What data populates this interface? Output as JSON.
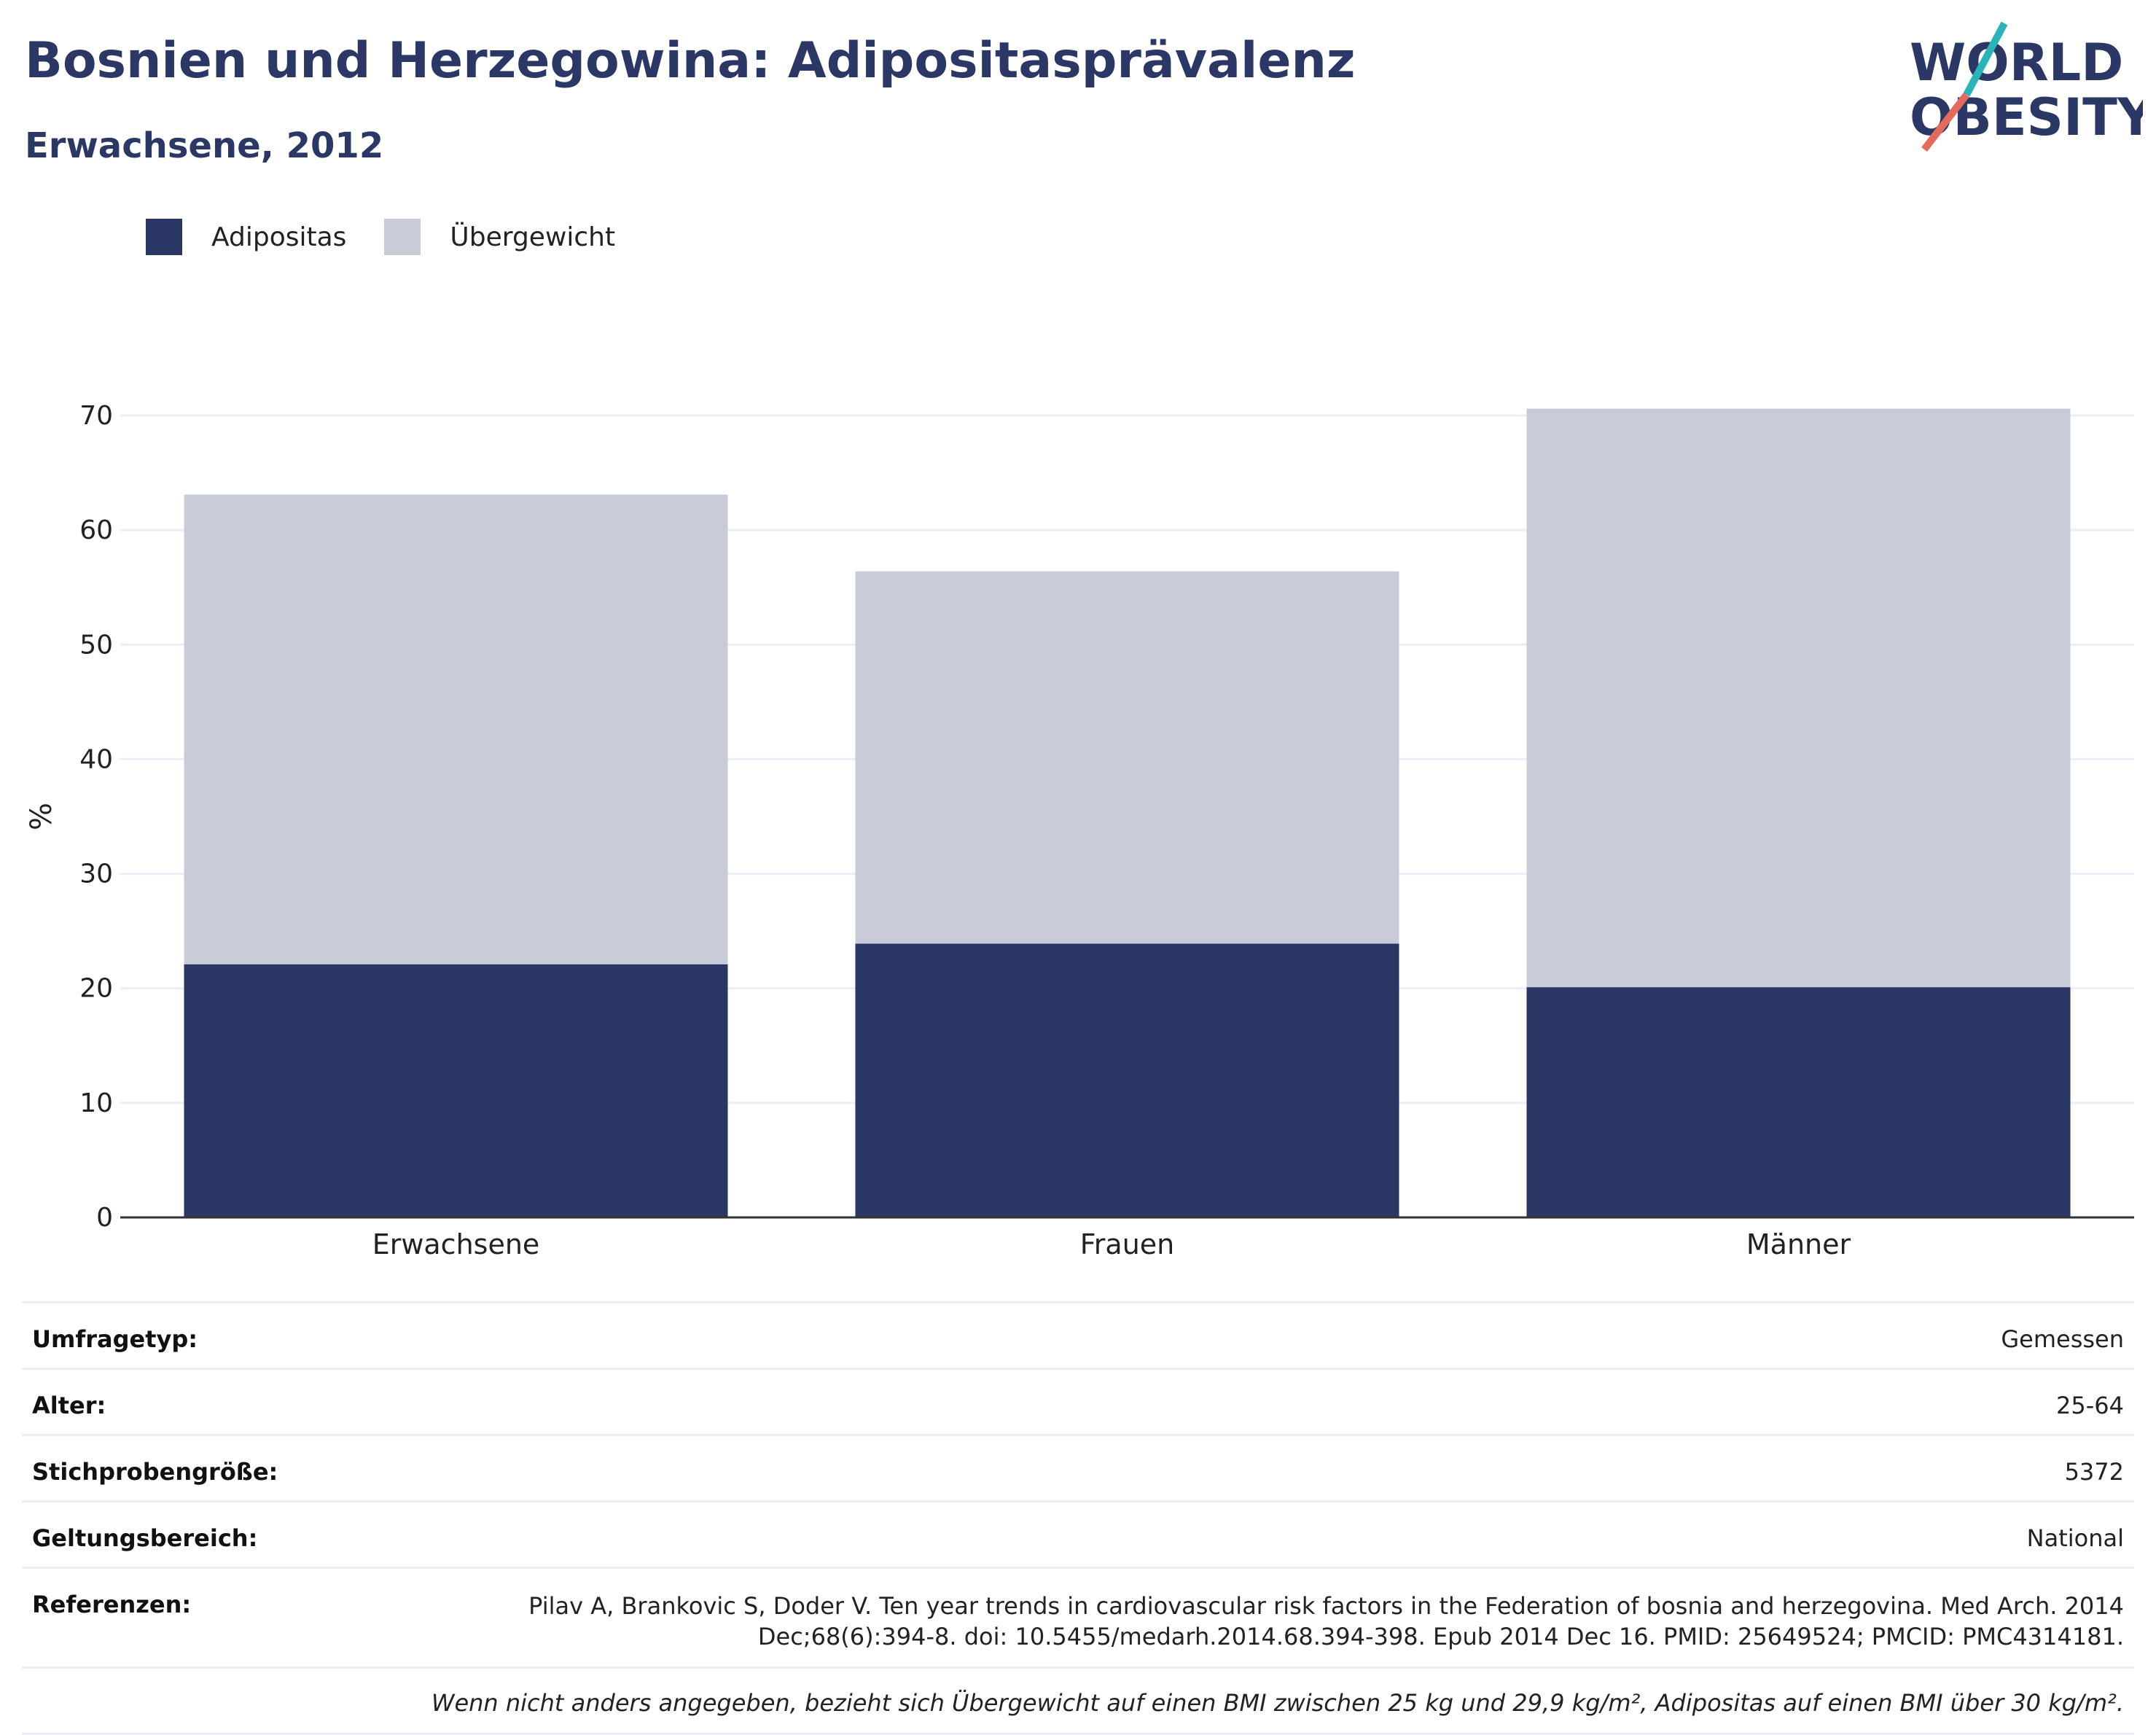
{
  "title": "Bosnien und Herzegowina: Adipositasprävalenz",
  "subtitle": "Erwachsene, 2012",
  "logo": {
    "line1": "WORLD",
    "line2": "OBESITY"
  },
  "legend": [
    {
      "label": "Adipositas",
      "color": "#2a3663"
    },
    {
      "label": "Übergewicht",
      "color": "#c9ccd8"
    }
  ],
  "chart_data": {
    "type": "bar",
    "stacked": true,
    "categories": [
      "Erwachsene",
      "Frauen",
      "Männer"
    ],
    "series": [
      {
        "name": "Adipositas",
        "values": [
          22.1,
          23.9,
          20.1
        ],
        "color": "#2a3663"
      },
      {
        "name": "Übergewicht",
        "values": [
          41.0,
          32.5,
          50.5
        ],
        "color": "#c9ccd8"
      }
    ],
    "xlabel": "",
    "ylabel": "%",
    "ylim": [
      0,
      70
    ],
    "yticks": [
      0,
      10,
      20,
      30,
      40,
      50,
      60,
      70
    ],
    "grid": true,
    "legend_position": "top-left"
  },
  "meta": {
    "survey_type": {
      "label": "Umfragetyp:",
      "value": "Gemessen"
    },
    "age": {
      "label": "Alter:",
      "value": "25-64"
    },
    "sample_size": {
      "label": "Stichprobengröße:",
      "value": "5372"
    },
    "scope": {
      "label": "Geltungsbereich:",
      "value": "National"
    },
    "references": {
      "label": "Referenzen:",
      "line1": "Pilav A, Brankovic S, Doder V. Ten year trends in cardiovascular risk factors in the Federation of bosnia and herzegovina. Med Arch. 2014",
      "line2": "Dec;68(6):394-8. doi: 10.5455/medarh.2014.68.394-398. Epub 2014 Dec 16. PMID: 25649524; PMCID: PMC4314181."
    },
    "note": "Wenn nicht anders angegeben, bezieht sich Übergewicht auf einen BMI zwischen 25 kg und 29,9 kg/m², Adipositas auf einen BMI über 30 kg/m²."
  }
}
